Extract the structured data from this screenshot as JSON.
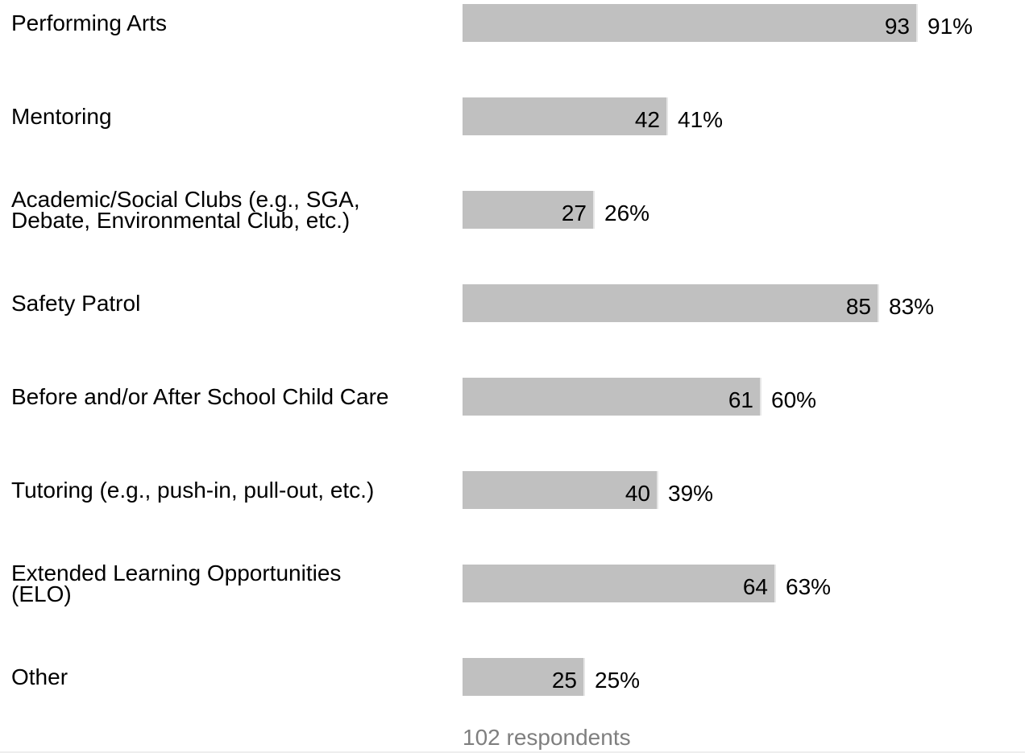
{
  "chart_data": {
    "type": "bar",
    "orientation": "horizontal",
    "categories": [
      "Performing Arts",
      "Mentoring",
      "Academic/Social Clubs (e.g., SGA, Debate, Environmental Club, etc.)",
      "Safety Patrol",
      "Before and/or After School Child Care",
      "Tutoring (e.g., push-in, pull-out, etc.)",
      "Extended Learning Opportunities (ELO)",
      "Other"
    ],
    "values": [
      93,
      42,
      27,
      85,
      61,
      40,
      64,
      25
    ],
    "percent_labels": [
      "91%",
      "41%",
      "26%",
      "83%",
      "60%",
      "39%",
      "63%",
      "25%"
    ],
    "title": "",
    "xlabel": "",
    "ylabel": "",
    "xlim": [
      0,
      102
    ],
    "grid": false,
    "footer": "102 respondents",
    "bar_color": "#c0c0c0"
  }
}
